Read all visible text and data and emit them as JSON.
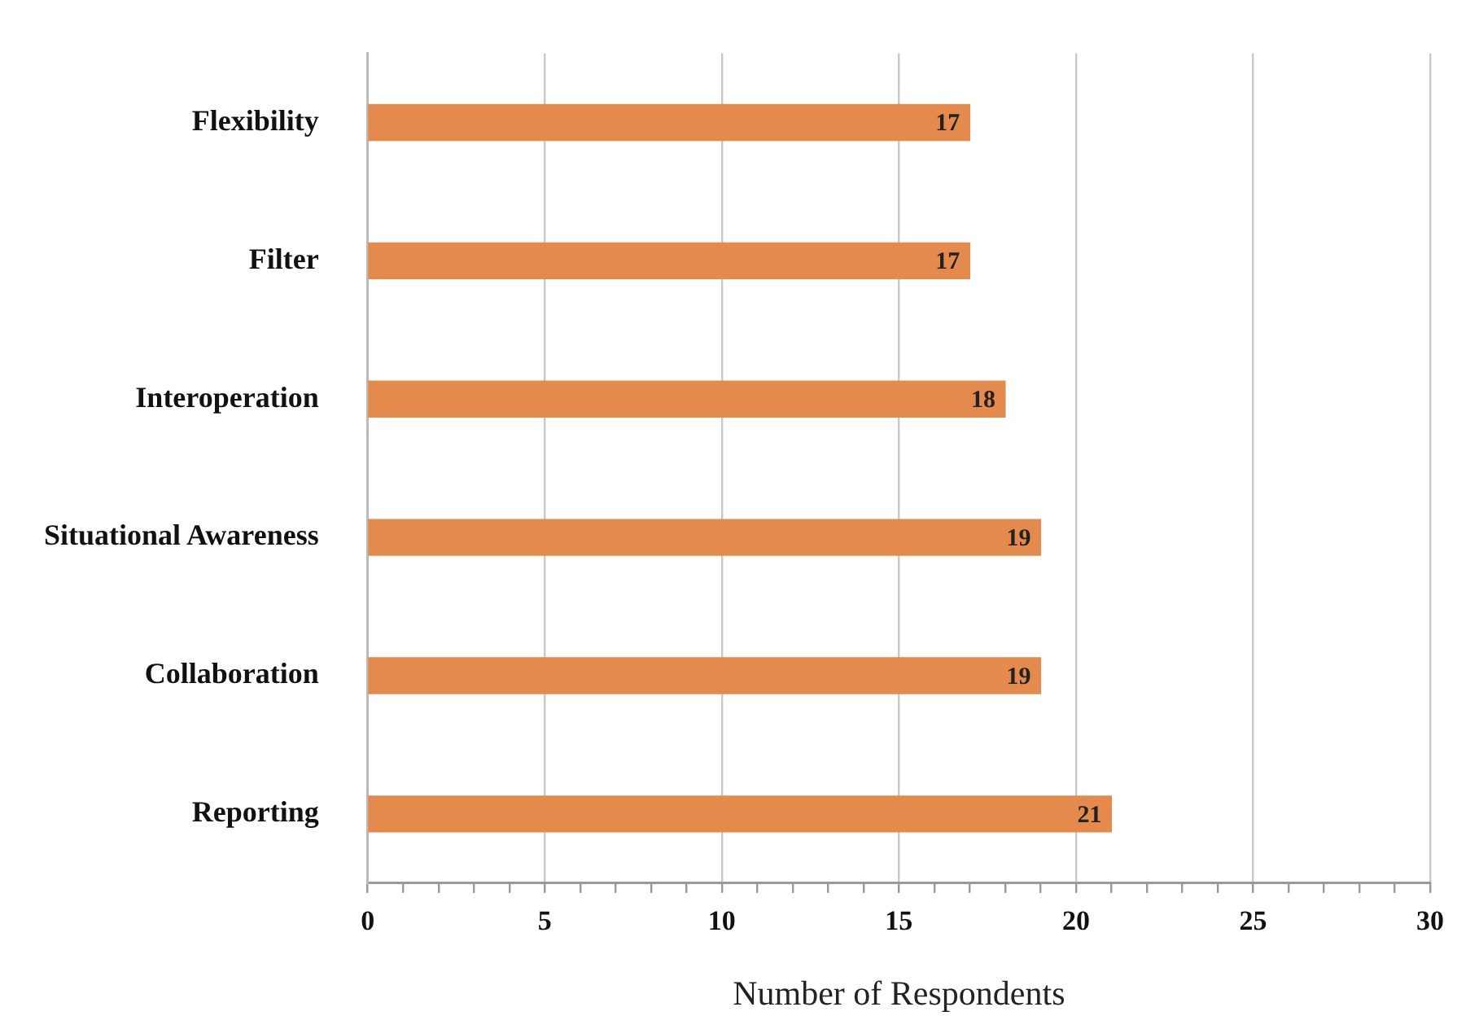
{
  "chart_data": {
    "type": "bar",
    "orientation": "horizontal",
    "xlabel": "Number of Respondents",
    "categories": [
      "Flexibility",
      "Filter",
      "Interoperation",
      "Situational Awareness",
      "Collaboration",
      "Reporting"
    ],
    "values": [
      17,
      17,
      18,
      19,
      19,
      21
    ],
    "color": "#e38a4c",
    "data_labels": true,
    "grid": "x",
    "legend": false,
    "xlim": [
      0,
      30
    ],
    "xticks": [
      0,
      {
        "value": 1,
        "label": null
      },
      {
        "value": 2,
        "label": null
      },
      {
        "value": 3,
        "label": null
      },
      {
        "value": 4,
        "label": null
      },
      5,
      {
        "value": 6,
        "label": null
      },
      {
        "value": 7,
        "label": null
      },
      {
        "value": 8,
        "label": null
      },
      {
        "value": 9,
        "label": null
      },
      10,
      {
        "value": 11,
        "label": null
      },
      {
        "value": 12,
        "label": null
      },
      {
        "value": 13,
        "label": null
      },
      {
        "value": 14,
        "label": null
      },
      15,
      {
        "value": 16,
        "label": null
      },
      {
        "value": 17,
        "label": null
      },
      {
        "value": 18,
        "label": null
      },
      {
        "value": 19,
        "label": null
      },
      20,
      {
        "value": 21,
        "label": null
      },
      {
        "value": 22,
        "label": null
      },
      {
        "value": 23,
        "label": null
      },
      {
        "value": 24,
        "label": null
      },
      25,
      {
        "value": 26,
        "label": null
      },
      {
        "value": 27,
        "label": null
      },
      {
        "value": 28,
        "label": null
      },
      {
        "value": 29,
        "label": null
      },
      30
    ]
  }
}
